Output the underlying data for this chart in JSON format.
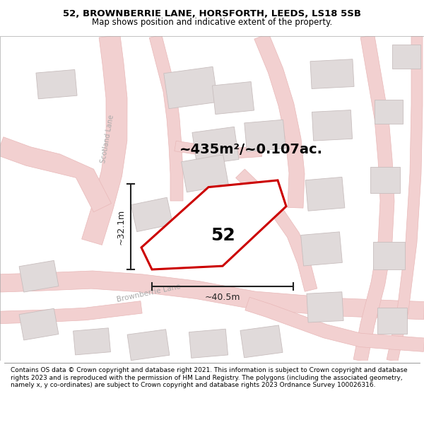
{
  "title_line1": "52, BROWNBERRIE LANE, HORSFORTH, LEEDS, LS18 5SB",
  "title_line2": "Map shows position and indicative extent of the property.",
  "footer_text": "Contains OS data © Crown copyright and database right 2021. This information is subject to Crown copyright and database rights 2023 and is reproduced with the permission of HM Land Registry. The polygons (including the associated geometry, namely x, y co-ordinates) are subject to Crown copyright and database rights 2023 Ordnance Survey 100026316.",
  "area_label": "~435m²/~0.107ac.",
  "property_number": "52",
  "dim_width": "~40.5m",
  "dim_height": "~32.1m",
  "road_color": "#f2d0d0",
  "road_edge_color": "#e8b8b8",
  "building_color": "#e0dada",
  "building_edge_color": "#c8bebe",
  "property_outline_color": "#cc0000",
  "dim_color": "#222222",
  "road_label_color": "#aaaaaa",
  "scotland_lane_label": "Scotland Lane",
  "brownberrie_lane_label": "Brownberrie Lane"
}
